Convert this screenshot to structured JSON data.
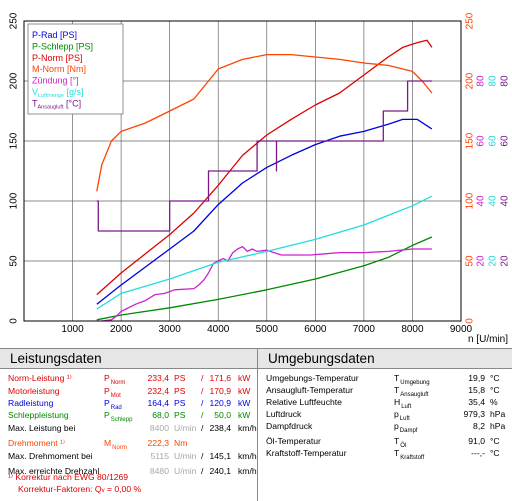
{
  "chart_data": {
    "type": "line",
    "xlabel": "n [U/min]",
    "xlim": [
      0,
      9000
    ],
    "xticks": [
      "1000",
      "2000",
      "3000",
      "4000",
      "5000",
      "6000",
      "7000",
      "8000",
      "9000"
    ],
    "left_axis": {
      "ylim": [
        0,
        250
      ],
      "ticks": [
        "0",
        "50",
        "100",
        "150",
        "200",
        "250"
      ]
    },
    "right_axes": [
      {
        "color": "#ff4400",
        "ticks": [
          "0",
          "50",
          "100",
          "150",
          "200",
          "250"
        ]
      },
      {
        "color": "#cc22cc",
        "ticks": [
          "20",
          "40",
          "60",
          "80"
        ]
      },
      {
        "color": "#22dddd",
        "ticks": [
          "20",
          "40",
          "60",
          "80"
        ]
      },
      {
        "color": "#7a1a8a",
        "ticks": [
          "20",
          "40",
          "60",
          "80"
        ]
      }
    ],
    "legend": [
      {
        "label": "P-Rad [PS]",
        "color": "#0000dd"
      },
      {
        "label": "P-Schlepp [PS]",
        "color": "#008800"
      },
      {
        "label": "P-Norm [PS]",
        "color": "#dd0000"
      },
      {
        "label": "M-Norm [Nm]",
        "color": "#ff4400"
      },
      {
        "label": "Zündung [°]",
        "color": "#cc22cc"
      },
      {
        "label": "V",
        "sub": "Luftmenge",
        "unit": " [g/s]",
        "color": "#22dddd"
      },
      {
        "label": "T",
        "sub": "Ansaugluft",
        "unit": " [°C]",
        "color": "#7a1a8a"
      }
    ],
    "series": [
      {
        "name": "P-Rad [PS]",
        "color": "#0000dd",
        "x": [
          1500,
          2000,
          2500,
          3000,
          3500,
          4000,
          4500,
          5000,
          5500,
          6000,
          6500,
          7000,
          7500,
          7800,
          8100,
          8400
        ],
        "y": [
          14,
          30,
          45,
          60,
          75,
          97,
          115,
          128,
          138,
          147,
          154,
          158,
          164,
          168,
          168,
          160
        ]
      },
      {
        "name": "P-Schlepp [PS]",
        "color": "#008800",
        "x": [
          1500,
          2000,
          3000,
          4000,
          5000,
          6000,
          7000,
          7500,
          8000,
          8400
        ],
        "y": [
          1,
          5,
          11,
          18,
          26,
          35,
          46,
          53,
          63,
          70
        ]
      },
      {
        "name": "P-Norm [PS]",
        "color": "#dd0000",
        "x": [
          1500,
          2000,
          2500,
          3000,
          3500,
          4000,
          4500,
          5000,
          5500,
          6000,
          6500,
          7000,
          7500,
          7800,
          8100,
          8300,
          8400
        ],
        "y": [
          22,
          40,
          56,
          72,
          90,
          113,
          138,
          155,
          168,
          180,
          190,
          205,
          220,
          228,
          232,
          234,
          228
        ]
      },
      {
        "name": "M-Norm [Nm]",
        "color": "#ff4400",
        "x": [
          1500,
          1600,
          1800,
          2000,
          2500,
          3000,
          3500,
          4000,
          4500,
          5000,
          5500,
          6000,
          6500,
          7000,
          7500,
          8000,
          8200,
          8400
        ],
        "y": [
          108,
          130,
          150,
          158,
          165,
          175,
          185,
          210,
          218,
          222,
          222,
          220,
          218,
          215,
          213,
          208,
          200,
          190
        ]
      },
      {
        "name": "Zündung [°]",
        "color": "#cc22cc",
        "x": [
          1600,
          1800,
          1900,
          2000,
          2100,
          2300,
          2500,
          2700,
          2900,
          3100,
          3500,
          3600,
          3700,
          3800,
          3900,
          4000,
          4100,
          4200,
          4300,
          4400,
          4500,
          4600,
          4700,
          4800,
          5000,
          5300,
          5600,
          5900,
          6200,
          6500,
          7000,
          7500,
          8000,
          8400
        ],
        "y": [
          0,
          1,
          4,
          8,
          10,
          14,
          17,
          22,
          23,
          26,
          27,
          30,
          34,
          40,
          48,
          50,
          52,
          50,
          57,
          60,
          62,
          58,
          60,
          58,
          59,
          55,
          55,
          55,
          56,
          57,
          57,
          58,
          60,
          60
        ]
      },
      {
        "name": "Luftmenge [g/s]",
        "color": "#22dddd",
        "x": [
          1500,
          2000,
          3000,
          4000,
          5000,
          6000,
          7000,
          7500,
          8000,
          8400
        ],
        "y": [
          10,
          23,
          35,
          49,
          58,
          68,
          80,
          88,
          96,
          104
        ]
      },
      {
        "name": "Ansaugluft [°C]",
        "color": "#7a1a8a",
        "x": [
          1500,
          1530,
          1530,
          3000,
          3000,
          3800,
          3800,
          4800,
          4800,
          5200,
          5200,
          5200,
          7400,
          7400,
          7900,
          7900,
          8400
        ],
        "y": [
          100,
          100,
          75,
          75,
          100,
          100,
          125,
          125,
          150,
          150,
          125,
          150,
          150,
          175,
          175,
          200,
          200
        ]
      }
    ]
  },
  "left_table": {
    "title": "Leistungsdaten",
    "rows": [
      {
        "label": "Norm-Leistung ¹⁾",
        "sym": "P",
        "sub": "Norm",
        "v1": "233,4",
        "u1": "PS",
        "sep": "/",
        "v2": "171,6",
        "u2": "kW",
        "color": "#dd0000"
      },
      {
        "label": "Motorleistung",
        "sym": "P",
        "sub": "Mot",
        "v1": "232,4",
        "u1": "PS",
        "sep": "/",
        "v2": "170,9",
        "u2": "kW",
        "color": "#dd0000"
      },
      {
        "label": "Radleistung",
        "sym": "P",
        "sub": "Rad",
        "v1": "164,4",
        "u1": "PS",
        "sep": "/",
        "v2": "120,9",
        "u2": "kW",
        "color": "#0000dd"
      },
      {
        "label": "Schleppleistung",
        "sym": "P",
        "sub": "Schlepp",
        "v1": "68,0",
        "u1": "PS",
        "sep": "/",
        "v2": "50,0",
        "u2": "kW",
        "color": "#008800"
      },
      {
        "label": "Max. Leistung bei",
        "sym": "",
        "sub": "",
        "v1": "8400",
        "u1": "U/min",
        "sep": "/",
        "v2": "238,4",
        "u2": "km/h",
        "color": "#000000",
        "gray": true
      },
      {
        "label": "Drehmoment ¹⁾",
        "sym": "M",
        "sub": "Norm",
        "v1": "222,3",
        "u1": "Nm",
        "sep": "",
        "v2": "",
        "u2": "",
        "color": "#ff4400"
      },
      {
        "label": "Max. Drehmoment bei",
        "sym": "",
        "sub": "",
        "v1": "5115",
        "u1": "U/min",
        "sep": "/",
        "v2": "145,1",
        "u2": "km/h",
        "color": "#000000",
        "gray": true
      },
      {
        "label": "Max. erreichte Drehzahl",
        "sym": "",
        "sub": "",
        "v1": "8480",
        "u1": "U/min",
        "sep": "/",
        "v2": "240,1",
        "u2": "km/h",
        "color": "#000000",
        "gray": true
      }
    ],
    "footnote1": "¹⁾ Korrektur nach EWG 80/1269",
    "footnote2": "Korrektur-Faktoren: Q",
    "footnote2_sub": "v",
    "footnote2_value": " =  0,00 %"
  },
  "right_table": {
    "title": "Umgebungsdaten",
    "rows": [
      {
        "label": "Umgebungs-Temperatur",
        "sym": "T",
        "sub": "Umgebung",
        "value": "19,9",
        "unit": "°C"
      },
      {
        "label": "Ansaugluft-Temperatur",
        "sym": "T",
        "sub": "Ansaugluft",
        "value": "15,8",
        "unit": "°C"
      },
      {
        "label": "Relative Luftfeuchte",
        "sym": "H",
        "sub": "Luft",
        "value": "35,4",
        "unit": "%"
      },
      {
        "label": "Luftdruck",
        "sym": "p",
        "sub": "Luft",
        "value": "979,3",
        "unit": "hPa"
      },
      {
        "label": "Dampfdruck",
        "sym": "p",
        "sub": "Dampf",
        "value": "8,2",
        "unit": "hPa"
      },
      {
        "label": "Öl-Temperatur",
        "sym": "T",
        "sub": "Öl",
        "value": "91,0",
        "unit": "°C"
      },
      {
        "label": "Kraftstoff-Temperatur",
        "sym": "T",
        "sub": "Kraftstoff",
        "value": "---,-",
        "unit": "°C"
      }
    ]
  }
}
